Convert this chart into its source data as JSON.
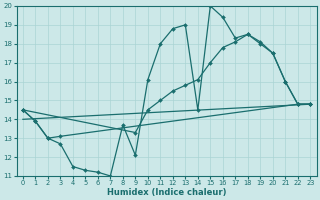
{
  "xlabel": "Humidex (Indice chaleur)",
  "xlim": [
    -0.5,
    23.5
  ],
  "ylim": [
    11,
    20
  ],
  "xticks": [
    0,
    1,
    2,
    3,
    4,
    5,
    6,
    7,
    8,
    9,
    10,
    11,
    12,
    13,
    14,
    15,
    16,
    17,
    18,
    19,
    20,
    21,
    22,
    23
  ],
  "yticks": [
    11,
    12,
    13,
    14,
    15,
    16,
    17,
    18,
    19,
    20
  ],
  "background_color": "#cce8e8",
  "grid_color": "#aad4d4",
  "line_color": "#1a6e6e",
  "line1_x": [
    0,
    1,
    2,
    3,
    4,
    5,
    6,
    7,
    8,
    9,
    10,
    11,
    12,
    13,
    14,
    15,
    16,
    17,
    18,
    19,
    20,
    21,
    22,
    23
  ],
  "line1_y": [
    14.5,
    13.9,
    13.0,
    12.7,
    11.5,
    11.3,
    11.2,
    11.0,
    13.7,
    12.1,
    16.1,
    18.0,
    18.8,
    19.0,
    14.5,
    20.0,
    19.4,
    18.3,
    18.5,
    18.1,
    17.5,
    16.0,
    14.8,
    14.8
  ],
  "line2_x": [
    0,
    9,
    10,
    11,
    12,
    13,
    14,
    15,
    16,
    17,
    18,
    19,
    20,
    21,
    22,
    23
  ],
  "line2_y": [
    14.5,
    13.3,
    14.5,
    15.0,
    15.5,
    15.8,
    16.1,
    17.0,
    17.8,
    18.1,
    18.5,
    18.0,
    17.5,
    16.0,
    14.8,
    14.8
  ],
  "line3_x": [
    0,
    23
  ],
  "line3_y": [
    14.0,
    14.8
  ],
  "line4_x": [
    0,
    1,
    2,
    3,
    22,
    23
  ],
  "line4_y": [
    14.5,
    13.9,
    13.0,
    13.1,
    14.8,
    14.8
  ]
}
